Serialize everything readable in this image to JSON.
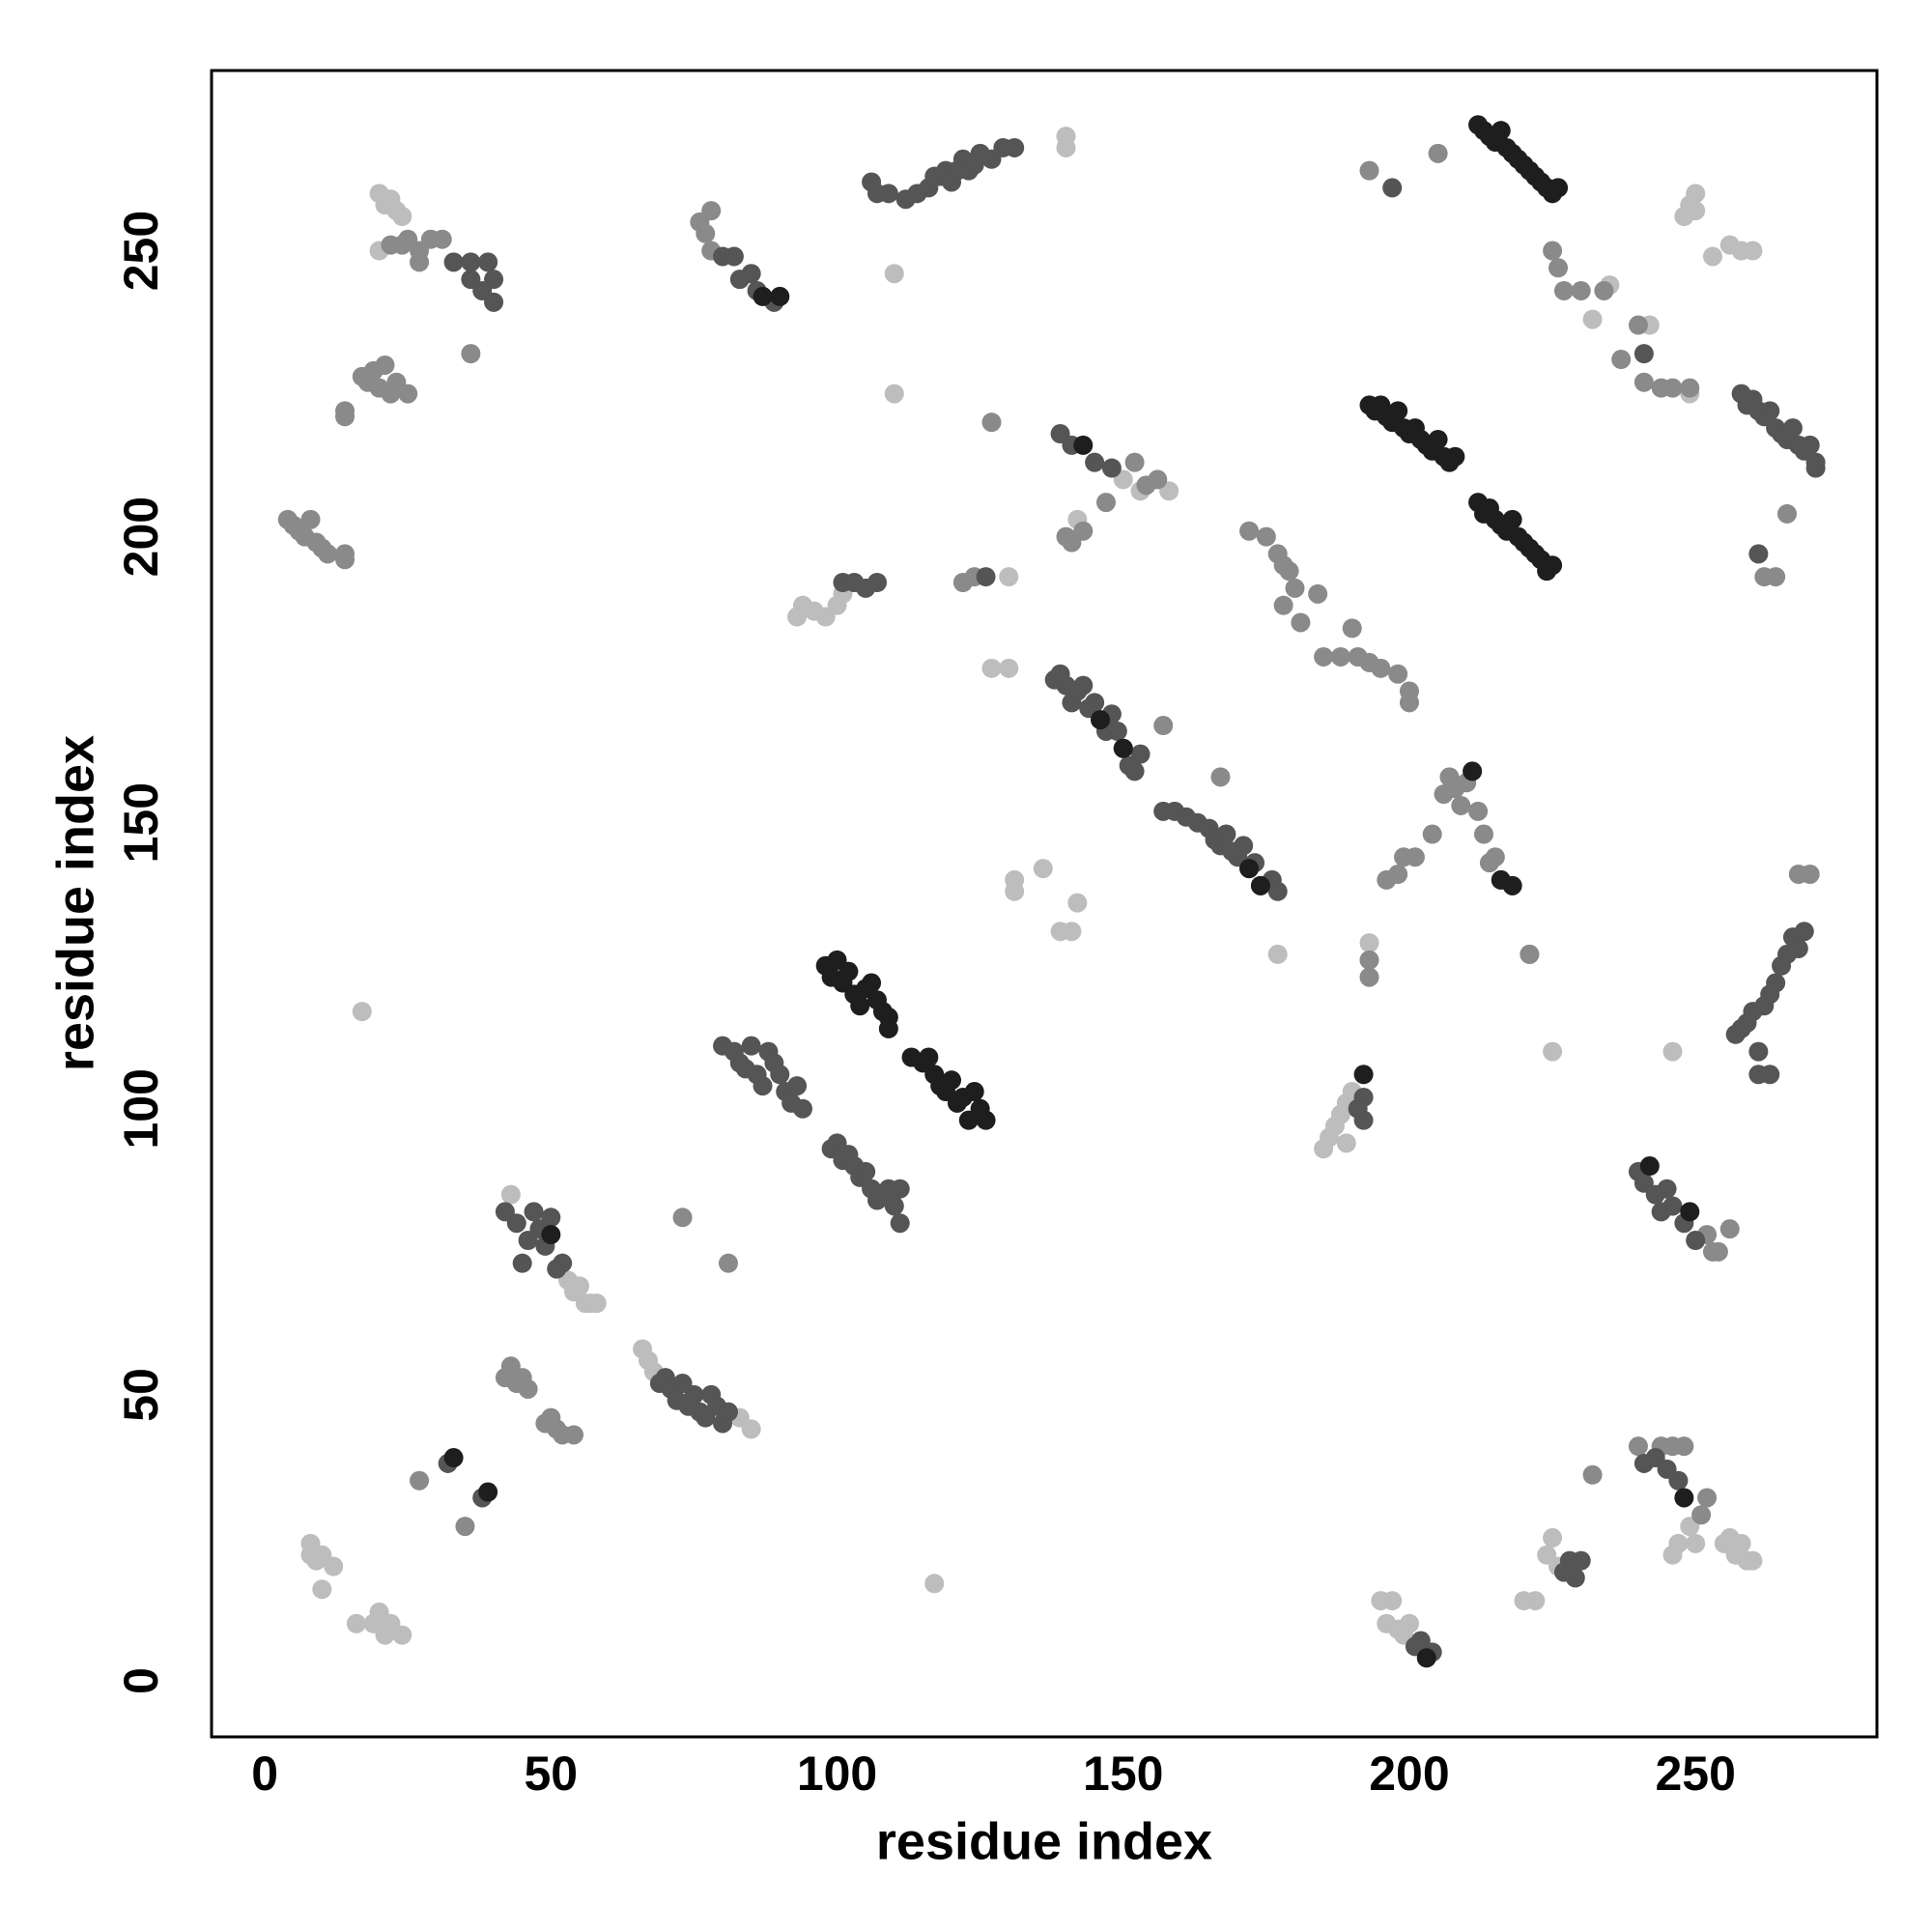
{
  "chart_data": {
    "type": "scatter",
    "xlabel": "residue index",
    "ylabel": "residue index",
    "xlim": [
      -9.3,
      281.7
    ],
    "ylim": [
      -9.8,
      281.5
    ],
    "xticks": [
      0,
      50,
      100,
      150,
      200,
      250
    ],
    "yticks": [
      0,
      50,
      100,
      150,
      200,
      250
    ],
    "grid": false,
    "series": [
      {
        "color": "#bdbdbd",
        "x": [
          8,
          8,
          9,
          10,
          10,
          12,
          16,
          19,
          20,
          21,
          22,
          24,
          17,
          117,
          93,
          94,
          96,
          98,
          100,
          101,
          248,
          249,
          250,
          250,
          253,
          256,
          258,
          260,
          195,
          196,
          197,
          198,
          199,
          200,
          220,
          222,
          224,
          225,
          226,
          225,
          246,
          246,
          247,
          255,
          256,
          257,
          258,
          259,
          260,
          249,
          250,
          20,
          21,
          22,
          23,
          24,
          20,
          131,
          131,
          136,
          139,
          141,
          142,
          185,
          186,
          187,
          188,
          189,
          189,
          190,
          193,
          53,
          54,
          55,
          56,
          57,
          58,
          43,
          66,
          67,
          68,
          83,
          85,
          140,
          140,
          110,
          110,
          130,
          127,
          130,
          142,
          153,
          158,
          150,
          232,
          235,
          242,
          249,
          176,
          177,
          224,
          225
        ],
        "y": [
          24,
          22,
          21,
          22,
          16,
          20,
          10,
          10,
          12,
          8,
          10,
          8,
          117,
          17,
          186,
          188,
          187,
          186,
          188,
          190,
          256,
          258,
          260,
          257,
          249,
          251,
          250,
          250,
          14,
          10,
          14,
          9,
          8,
          10,
          14,
          14,
          22,
          25,
          20,
          110,
          110,
          22,
          24,
          24,
          25,
          22,
          24,
          21,
          21,
          27,
          24,
          260,
          258,
          259,
          257,
          256,
          250,
          140,
          138,
          142,
          131,
          131,
          136,
          93,
          95,
          97,
          99,
          94,
          101,
          103,
          129,
          70,
          68,
          69,
          66,
          66,
          66,
          85,
          58,
          56,
          54,
          46,
          44,
          270,
          268,
          246,
          225,
          193,
          177,
          177,
          203,
          208,
          208,
          210,
          238,
          244,
          237,
          225,
          140,
          127,
          194,
          195
        ]
      },
      {
        "color": "#8a8a8a",
        "x": [
          4,
          5,
          6,
          7,
          8,
          9,
          10,
          11,
          14,
          14,
          14,
          14,
          17,
          18,
          19,
          20,
          21,
          22,
          23,
          25,
          76,
          77,
          78,
          78,
          172,
          175,
          177,
          178,
          179,
          180,
          178,
          181,
          184,
          185,
          188,
          190,
          191,
          193,
          195,
          198,
          200,
          200,
          225,
          226,
          227,
          230,
          234,
          237,
          240,
          241,
          244,
          246,
          249,
          196,
          198,
          199,
          201,
          204,
          206,
          207,
          208,
          209,
          210,
          211,
          212,
          213,
          214,
          215,
          216,
          218,
          221,
          42,
          43,
          44,
          45,
          46,
          49,
          50,
          51,
          52,
          54,
          122,
          124,
          27,
          35,
          22,
          24,
          25,
          27,
          29,
          31,
          36,
          27,
          157,
          167,
          193,
          205,
          127,
          73,
          81,
          232,
          252,
          251,
          240,
          244,
          246,
          248,
          266,
          262,
          264,
          268,
          270,
          256,
          254,
          253,
          252,
          193,
          193,
          221,
          147,
          143,
          140,
          141,
          152,
          156,
          154
        ],
        "y": [
          203,
          202,
          201,
          200,
          203,
          199,
          198,
          197,
          197,
          196,
          222,
          221,
          228,
          227,
          229,
          226,
          230,
          225,
          227,
          225,
          255,
          253,
          257,
          250,
          201,
          200,
          197,
          195,
          194,
          191,
          188,
          185,
          190,
          179,
          179,
          184,
          179,
          178,
          177,
          176,
          173,
          171,
          250,
          247,
          243,
          243,
          243,
          231,
          237,
          227,
          226,
          226,
          226,
          140,
          141,
          144,
          144,
          148,
          155,
          158,
          156,
          153,
          157,
          159,
          152,
          148,
          143,
          144,
          140,
          139,
          127,
          53,
          55,
          52,
          53,
          51,
          45,
          46,
          44,
          43,
          43,
          192,
          193,
          35,
          27,
          251,
          251,
          252,
          250,
          252,
          252,
          232,
          248,
          167,
          158,
          264,
          267,
          220,
          81,
          73,
          36,
          32,
          29,
          41,
          41,
          41,
          41,
          204,
          193,
          193,
          141,
          141,
          79,
          75,
          75,
          78,
          123,
          126,
          127,
          206,
          201,
          200,
          199,
          213,
          210,
          209
        ]
      },
      {
        "color": "#555555",
        "x": [
          33,
          36,
          36,
          38,
          39,
          40,
          40,
          106,
          107,
          109,
          112,
          114,
          116,
          117,
          118,
          119,
          120,
          121,
          122,
          123,
          124,
          125,
          127,
          129,
          131,
          139,
          141,
          145,
          148,
          138,
          139,
          140,
          141,
          142,
          143,
          144,
          145,
          146,
          147,
          148,
          149,
          150,
          151,
          152,
          153,
          157,
          159,
          161,
          163,
          165,
          166,
          167,
          168,
          169,
          170,
          171,
          172,
          173,
          174,
          176,
          177,
          258,
          259,
          260,
          261,
          262,
          263,
          264,
          265,
          266,
          267,
          268,
          269,
          270,
          271,
          271,
          257,
          258,
          259,
          260,
          261,
          261,
          262,
          263,
          264,
          265,
          266,
          267,
          268,
          269,
          263,
          80,
          82,
          83,
          84,
          85,
          86,
          87,
          88,
          89,
          90,
          91,
          92,
          93,
          94,
          99,
          100,
          101,
          102,
          103,
          104,
          105,
          106,
          107,
          108,
          109,
          110,
          111,
          111,
          240,
          241,
          243,
          244,
          245,
          246,
          248,
          250,
          42,
          44,
          45,
          46,
          47,
          48,
          49,
          50,
          51,
          52,
          69,
          70,
          71,
          72,
          73,
          74,
          75,
          76,
          77,
          78,
          79,
          80,
          81,
          80,
          82,
          83,
          85,
          86,
          89,
          32,
          38,
          101,
          103,
          105,
          107,
          126,
          197,
          241,
          241,
          243,
          245,
          247,
          226,
          261,
          201,
          202,
          204,
          227,
          228,
          229,
          230,
          192,
          192,
          191
        ],
        "y": [
          248,
          248,
          245,
          243,
          248,
          245,
          241,
          262,
          260,
          260,
          259,
          260,
          261,
          263,
          263,
          264,
          262,
          264,
          266,
          264,
          265,
          267,
          266,
          268,
          268,
          218,
          216,
          213,
          212,
          175,
          176,
          174,
          171,
          173,
          174,
          170,
          171,
          168,
          166,
          169,
          166,
          163,
          160,
          159,
          162,
          152,
          152,
          151,
          150,
          149,
          147,
          146,
          148,
          145,
          144,
          146,
          142,
          143,
          139,
          140,
          138,
          225,
          223,
          224,
          222,
          221,
          222,
          219,
          218,
          217,
          219,
          216,
          215,
          216,
          213,
          212,
          113,
          114,
          115,
          117,
          110,
          106,
          118,
          120,
          122,
          125,
          127,
          130,
          128,
          131,
          106,
          111,
          110,
          108,
          107,
          111,
          106,
          104,
          110,
          108,
          106,
          103,
          101,
          104,
          100,
          93,
          94,
          91,
          92,
          90,
          88,
          89,
          86,
          84,
          85,
          86,
          83,
          80,
          86,
          89,
          87,
          85,
          82,
          86,
          83,
          80,
          77,
          82,
          80,
          73,
          77,
          82,
          79,
          76,
          81,
          72,
          73,
          52,
          53,
          51,
          49,
          52,
          48,
          50,
          47,
          46,
          50,
          48,
          45,
          47,
          249,
          249,
          245,
          246,
          243,
          241,
          38,
          32,
          192,
          192,
          191,
          192,
          193,
          261,
          232,
          38,
          39,
          37,
          35,
          261,
          197,
          6,
          7,
          5,
          19,
          21,
          18,
          21,
          102,
          98,
          100
        ]
      },
      {
        "color": "#1e1e1e",
        "x": [
          193,
          194,
          195,
          196,
          197,
          198,
          199,
          200,
          201,
          202,
          203,
          204,
          205,
          206,
          207,
          208,
          212,
          213,
          214,
          215,
          216,
          217,
          218,
          219,
          220,
          221,
          222,
          223,
          224,
          225,
          226,
          212,
          213,
          214,
          215,
          216,
          217,
          218,
          219,
          220,
          221,
          222,
          223,
          224,
          225,
          98,
          99,
          100,
          101,
          102,
          103,
          104,
          105,
          106,
          107,
          108,
          109,
          109,
          113,
          115,
          116,
          117,
          118,
          119,
          120,
          121,
          122,
          123,
          124,
          125,
          126,
          33,
          39,
          50,
          87,
          90,
          143,
          203,
          242,
          249,
          248,
          192,
          218,
          216,
          211,
          174,
          172,
          146,
          150
        ],
        "y": [
          223,
          222,
          223,
          221,
          220,
          222,
          219,
          218,
          219,
          217,
          216,
          215,
          217,
          214,
          213,
          214,
          272,
          271,
          270,
          269,
          271,
          268,
          267,
          266,
          265,
          264,
          263,
          262,
          261,
          260,
          261,
          206,
          204,
          205,
          203,
          202,
          201,
          203,
          200,
          199,
          198,
          197,
          196,
          194,
          195,
          125,
          123,
          126,
          122,
          124,
          120,
          118,
          121,
          122,
          119,
          117,
          116,
          114,
          109,
          108,
          109,
          106,
          104,
          103,
          105,
          101,
          102,
          98,
          103,
          100,
          98,
          39,
          33,
          78,
          242,
          242,
          216,
          4,
          90,
          82,
          32,
          106,
          139,
          140,
          159,
          139,
          142,
          168,
          163
        ]
      }
    ]
  }
}
